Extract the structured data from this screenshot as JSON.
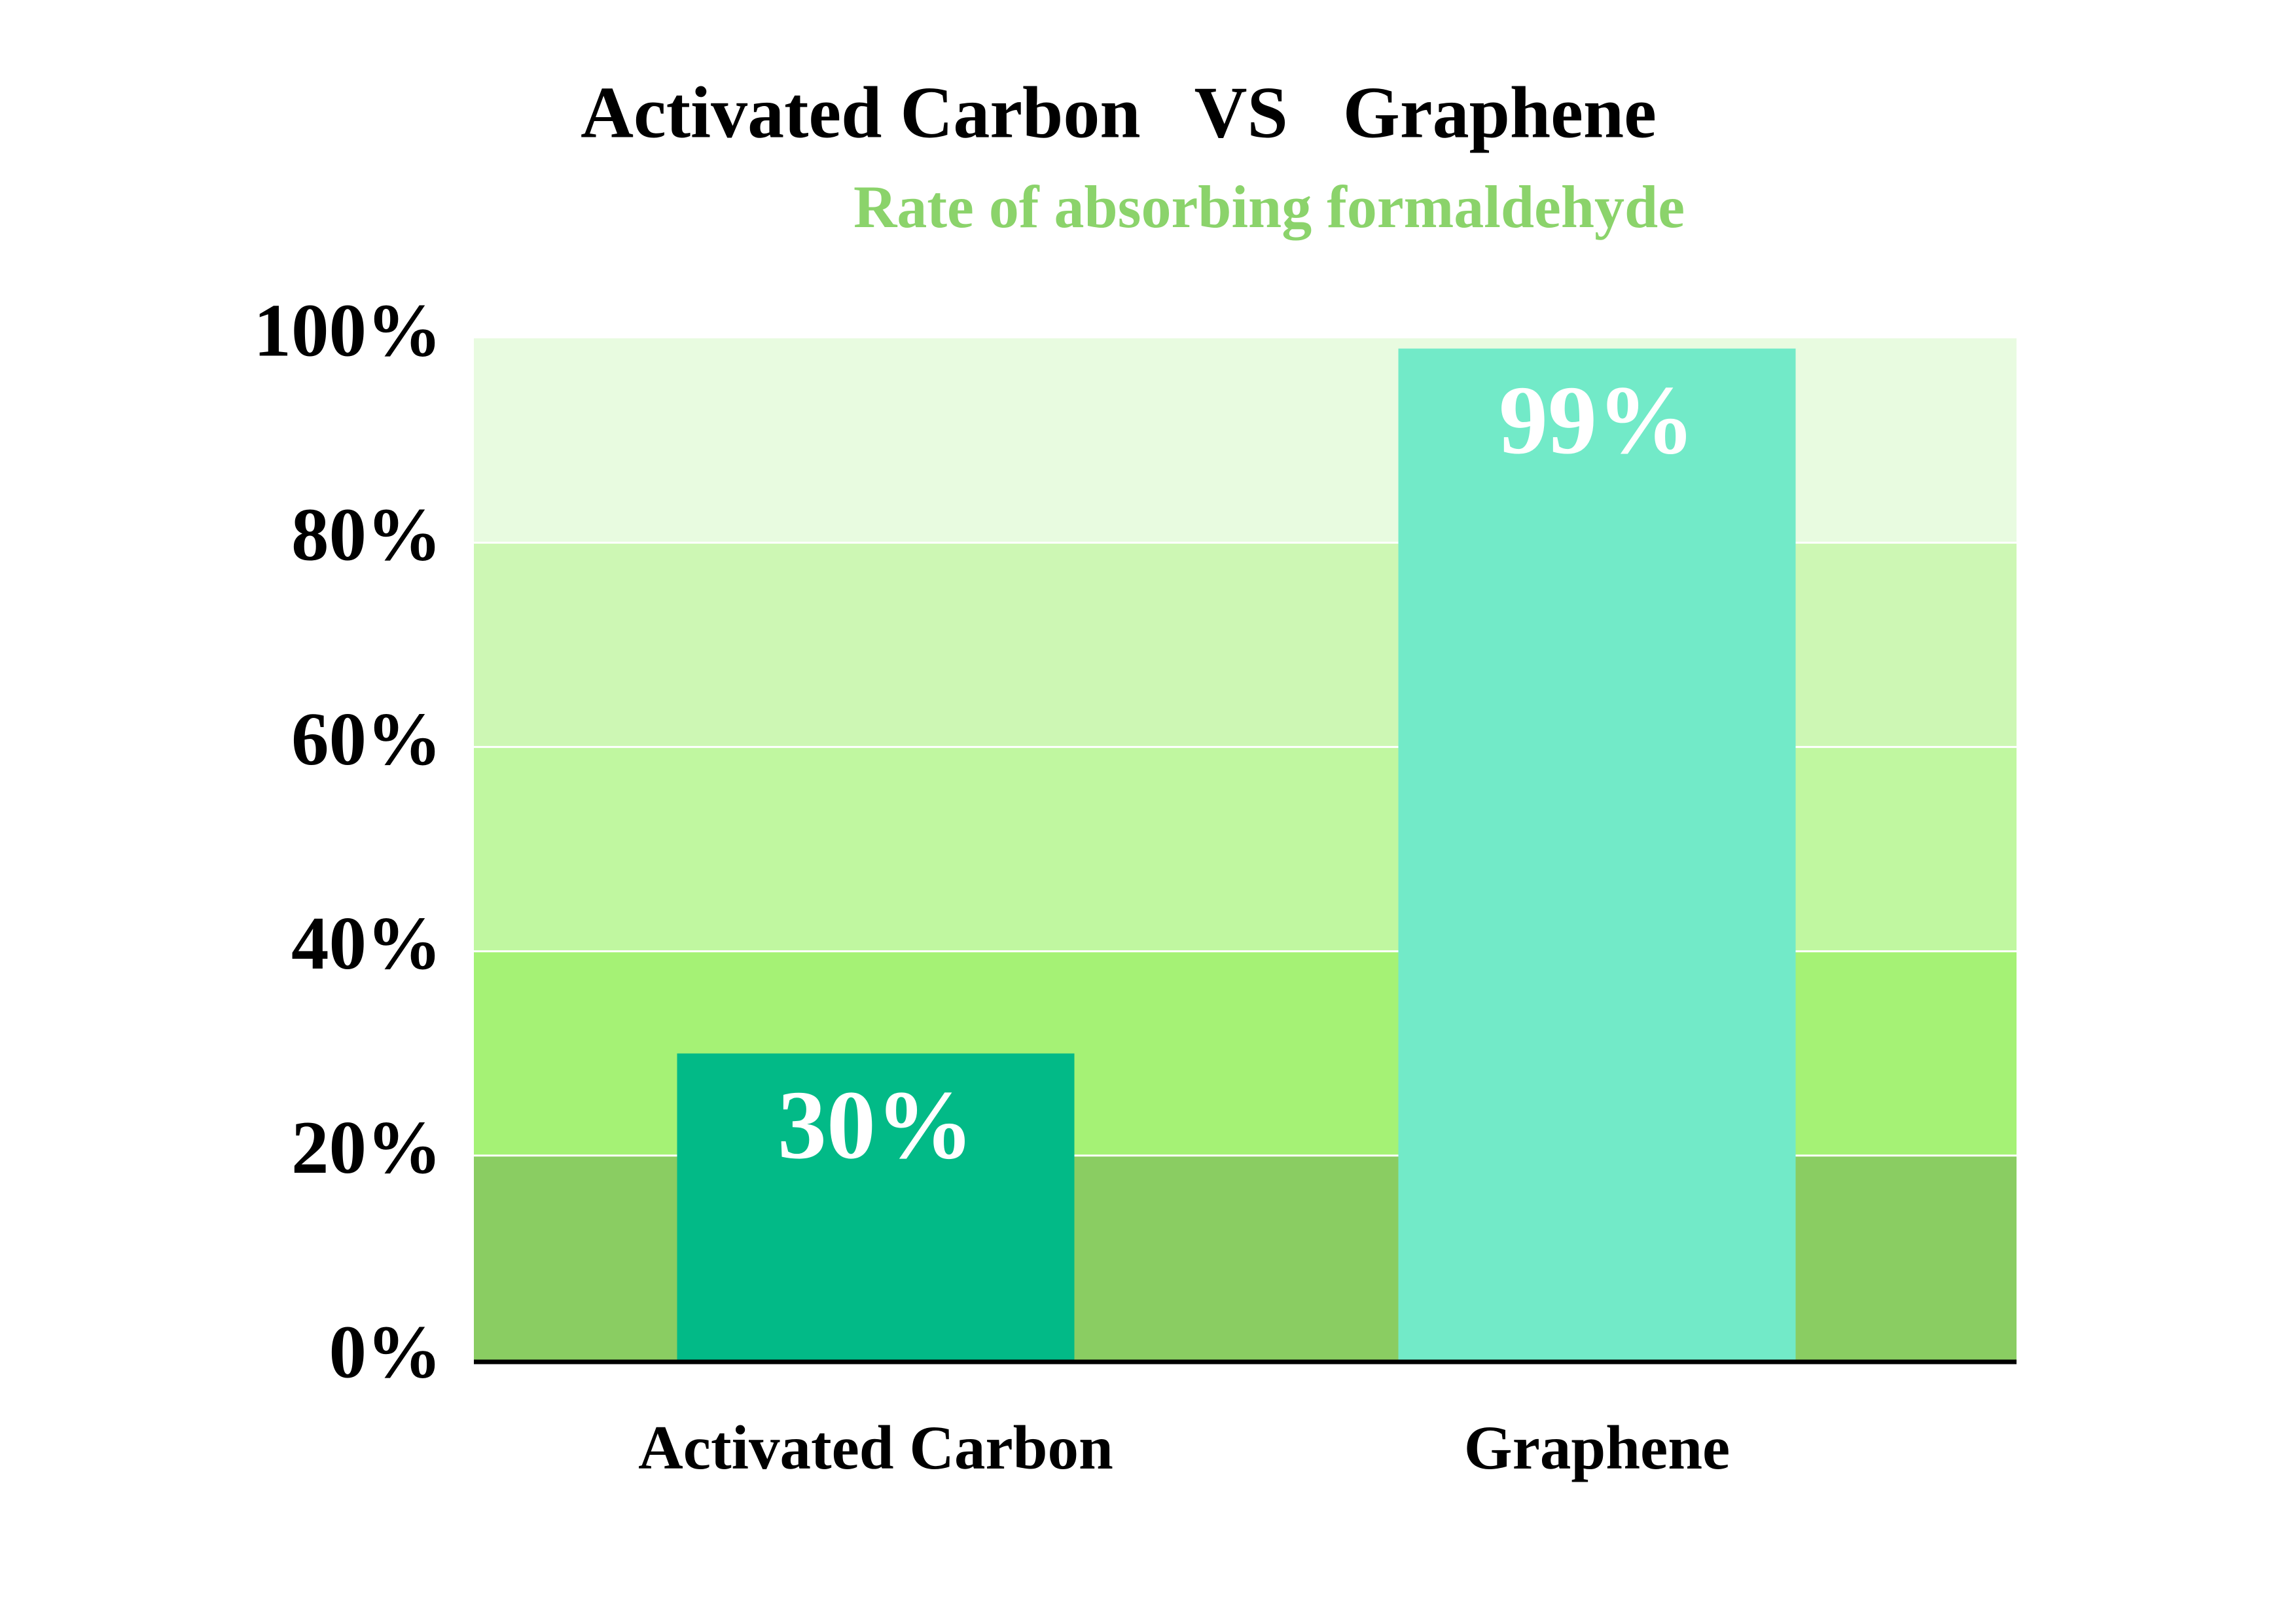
{
  "chart_data": {
    "type": "bar",
    "title": "Activated Carbon   VS   Graphene",
    "subtitle": "Rate of absorbing formaldehyde",
    "categories": [
      "Activated Carbon",
      "Graphene"
    ],
    "values": [
      30,
      99
    ],
    "value_labels": [
      "30%",
      "99%"
    ],
    "colors": [
      "#02ba87",
      "#72eac8"
    ],
    "ylim": [
      0,
      100
    ],
    "yticks": [
      {
        "value": 0,
        "label": "0%"
      },
      {
        "value": 20,
        "label": "20%"
      },
      {
        "value": 40,
        "label": "40%"
      },
      {
        "value": 60,
        "label": "60%"
      },
      {
        "value": 80,
        "label": "80%"
      },
      {
        "value": 100,
        "label": "100%"
      }
    ],
    "band_colors": [
      "#8acd62",
      "#a5f275",
      "#c0f7a0",
      "#cdf7b4",
      "#e8fbe0"
    ],
    "grid": true
  }
}
